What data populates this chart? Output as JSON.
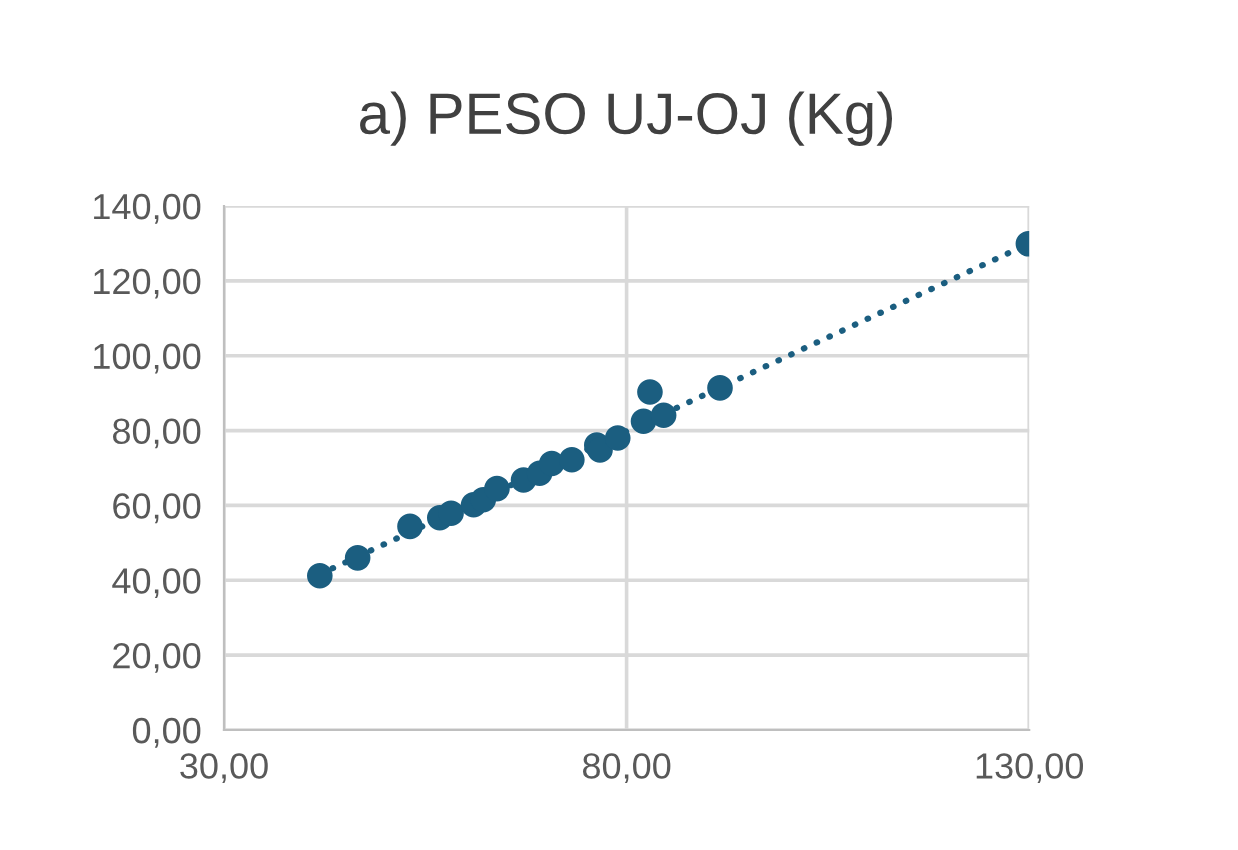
{
  "chart_data": {
    "type": "scatter",
    "title": "a) PESO UJ-OJ (Kg)",
    "xlim": [
      30,
      130
    ],
    "ylim": [
      0,
      140
    ],
    "xticks": [
      {
        "value": 30,
        "label": "30,00"
      },
      {
        "value": 80,
        "label": "80,00"
      },
      {
        "value": 130,
        "label": "130,00"
      }
    ],
    "yticks": [
      {
        "value": 0,
        "label": "0,00"
      },
      {
        "value": 20,
        "label": "20,00"
      },
      {
        "value": 40,
        "label": "40,00"
      },
      {
        "value": 60,
        "label": "60,00"
      },
      {
        "value": 80,
        "label": "80,00"
      },
      {
        "value": 100,
        "label": "100,00"
      },
      {
        "value": 120,
        "label": "120,00"
      },
      {
        "value": 140,
        "label": "140,00"
      }
    ],
    "grid": true,
    "legend": false,
    "series": [
      {
        "color": "#1b5e80",
        "marker": "circle",
        "x": [
          41.9,
          46.6,
          53.1,
          56.8,
          58.2,
          61.0,
          62.2,
          63.9,
          67.2,
          69.2,
          70.7,
          73.2,
          76.3,
          76.7,
          78.9,
          82.1,
          82.9,
          84.6,
          91.6,
          129.9
        ],
        "values": [
          41.2,
          46.0,
          54.4,
          56.7,
          57.9,
          60.2,
          61.5,
          64.5,
          66.8,
          68.6,
          71.2,
          72.2,
          76.1,
          74.8,
          78.0,
          82.5,
          90.3,
          84.1,
          91.4,
          129.9
        ]
      },
      {
        "type": "line",
        "color": "#1b5e80",
        "marker": "none",
        "line_style": "dotted",
        "x": [
          41.9,
          129.9
        ],
        "values": [
          41.6,
          129.9
        ]
      }
    ]
  }
}
